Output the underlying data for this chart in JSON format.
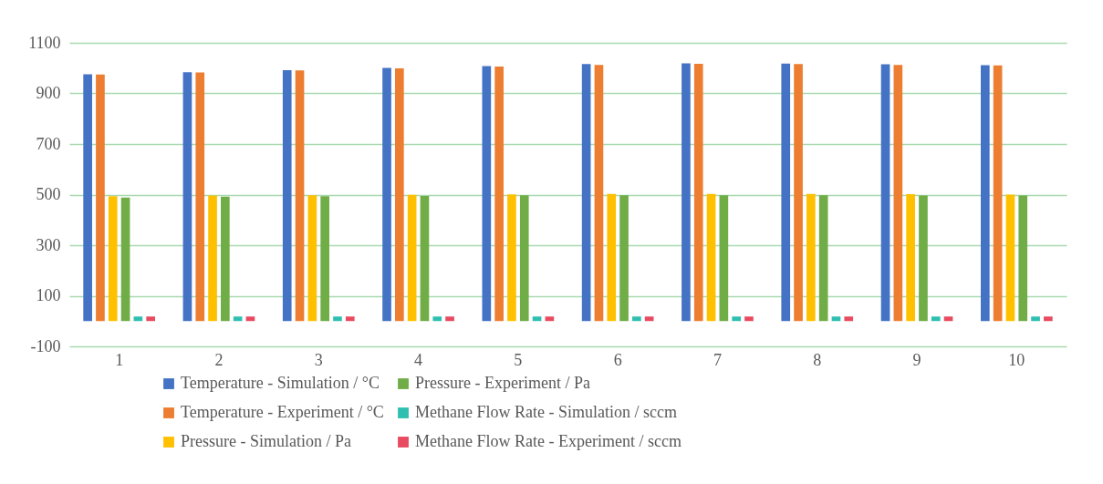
{
  "chart_data": {
    "type": "bar",
    "categories": [
      "1",
      "2",
      "3",
      "4",
      "5",
      "6",
      "7",
      "8",
      "9",
      "10"
    ],
    "series": [
      {
        "name": "Temperature - Simulation / °C",
        "color": "#4472c4",
        "values": [
          976,
          984,
          992,
          1001,
          1008,
          1016,
          1019,
          1018,
          1015,
          1012
        ]
      },
      {
        "name": "Temperature - Experiment / °C",
        "color": "#ed7d31",
        "values": [
          975,
          983,
          991,
          999,
          1006,
          1013,
          1017,
          1016,
          1013,
          1011
        ]
      },
      {
        "name": "Pressure - Simulation / Pa",
        "color": "#ffc000",
        "values": [
          494,
          496,
          497,
          499,
          501,
          503,
          503,
          503,
          502,
          500
        ]
      },
      {
        "name": "Pressure - Experiment / Pa",
        "color": "#70ad47",
        "values": [
          488,
          492,
          494,
          495,
          497,
          497,
          497,
          497,
          496,
          496
        ]
      },
      {
        "name": "Methane Flow Rate - Simulation / sccm",
        "color": "#2ebfb0",
        "values": [
          18,
          18,
          18,
          18,
          18,
          18,
          18,
          18,
          18,
          18
        ]
      },
      {
        "name": "Methane Flow Rate - Experiment / sccm",
        "color": "#e84a5f",
        "values": [
          18,
          18,
          18,
          18,
          18,
          18,
          18,
          18,
          18,
          18
        ]
      }
    ],
    "ylim": [
      -100,
      1100
    ],
    "yticks": [
      -100,
      100,
      300,
      500,
      700,
      900,
      1100
    ],
    "grid": "y",
    "legend": "bottom"
  }
}
